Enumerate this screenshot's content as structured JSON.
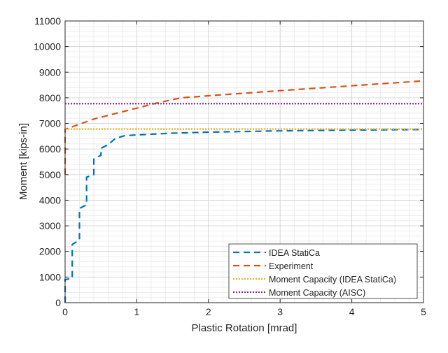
{
  "chart_data": {
    "type": "line",
    "title": "",
    "xlabel": "Plastic Rotation [mrad]",
    "ylabel": "Moment [kips-in]",
    "xlim": [
      0,
      5
    ],
    "ylim": [
      0,
      11000
    ],
    "xticks": [
      0,
      1,
      2,
      3,
      4,
      5
    ],
    "yticks": [
      0,
      1000,
      2000,
      3000,
      4000,
      5000,
      6000,
      7000,
      8000,
      9000,
      10000,
      11000
    ],
    "grid": "on (major and minor)",
    "legend_position": "bottom-right",
    "series": [
      {
        "name": "IDEA StatiCa",
        "color": "#0072BD",
        "style": "dashed",
        "x": [
          0,
          0,
          0.1,
          0.1,
          0.2,
          0.2,
          0.3,
          0.3,
          0.4,
          0.4,
          0.5,
          0.5,
          0.6,
          0.7,
          0.83,
          1.0,
          1.5,
          2.0,
          3.0,
          4.0,
          5.0
        ],
        "y": [
          0,
          900,
          950,
          2270,
          2450,
          3680,
          3820,
          4900,
          5000,
          5600,
          5760,
          6030,
          6170,
          6410,
          6520,
          6550,
          6620,
          6660,
          6710,
          6740,
          6760
        ]
      },
      {
        "name": "Experiment",
        "color": "#D95319",
        "style": "dashed",
        "x": [
          0,
          0,
          0.41,
          0.99,
          1.3,
          1.62,
          2.0,
          2.95,
          4.0,
          5.0
        ],
        "y": [
          5000,
          6770,
          7180,
          7590,
          7810,
          8000,
          8080,
          8270,
          8470,
          8660
        ]
      },
      {
        "name": "Moment Capacity (IDEA StatiCa)",
        "color": "#EDB120",
        "style": "dotted",
        "x": [
          0,
          5
        ],
        "y": [
          6780,
          6780
        ]
      },
      {
        "name": "Moment Capacity (AISC)",
        "color": "#7E2F8E",
        "style": "dotted",
        "x": [
          0,
          5
        ],
        "y": [
          7770,
          7770
        ]
      }
    ]
  }
}
